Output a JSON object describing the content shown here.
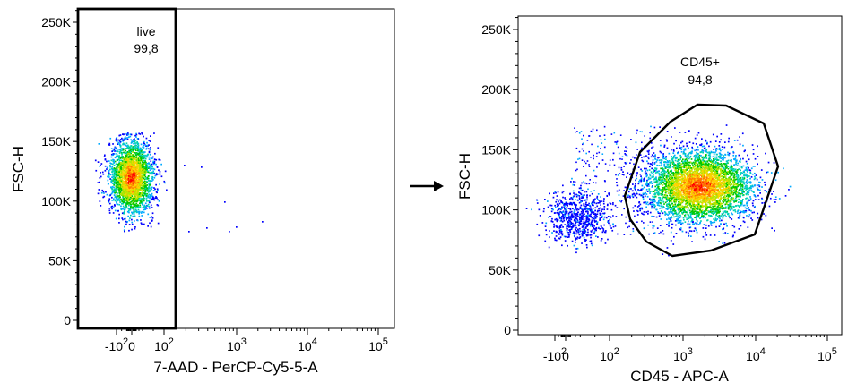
{
  "chart_data": [
    {
      "type": "scatter",
      "title": "",
      "xlabel": "7-AAD - PerCP-Cy5-5-A",
      "ylabel": "FSC-H",
      "x_scale": "biexponential",
      "x_ticks": [
        {
          "base": "-10",
          "exp": "2"
        },
        {
          "base": "0",
          "exp": ""
        },
        {
          "base": "10",
          "exp": "2"
        },
        {
          "base": "10",
          "exp": "3"
        },
        {
          "base": "10",
          "exp": "4"
        },
        {
          "base": "10",
          "exp": "5"
        }
      ],
      "y_ticks": [
        "0",
        "50K",
        "100K",
        "150K",
        "200K",
        "250K"
      ],
      "ylim": [
        0,
        262144
      ],
      "gate": {
        "name": "live",
        "value": "99,8",
        "shape": "rectangle"
      },
      "populations": [
        {
          "name": "",
          "x_center": 0,
          "y_center": 120000,
          "density": "high"
        }
      ],
      "grid": false
    },
    {
      "type": "scatter",
      "title": "",
      "xlabel": "CD45 - APC-A",
      "ylabel": "FSC-H",
      "x_scale": "biexponential",
      "x_ticks": [
        {
          "base": "-10",
          "exp": "2"
        },
        {
          "base": "0",
          "exp": ""
        },
        {
          "base": "10",
          "exp": "2"
        },
        {
          "base": "10",
          "exp": "3"
        },
        {
          "base": "10",
          "exp": "4"
        },
        {
          "base": "10",
          "exp": "5"
        }
      ],
      "y_ticks": [
        "0",
        "50K",
        "100K",
        "150K",
        "200K",
        "250K"
      ],
      "ylim": [
        0,
        262144
      ],
      "gate": {
        "name": "CD45+",
        "value": "94,8",
        "shape": "polygon"
      },
      "populations": [
        {
          "name": "",
          "x_center": 2000,
          "y_center": 120000,
          "density": "high"
        },
        {
          "name": "",
          "x_center": 0,
          "y_center": 95000,
          "density": "low"
        }
      ],
      "grid": false
    }
  ],
  "colors": {
    "density": [
      "#0000ff",
      "#00aaff",
      "#00d2b4",
      "#00c800",
      "#b4e600",
      "#ffd200",
      "#ff7800",
      "#ff0000"
    ],
    "gate": "#000000",
    "arrow": "#000000"
  }
}
